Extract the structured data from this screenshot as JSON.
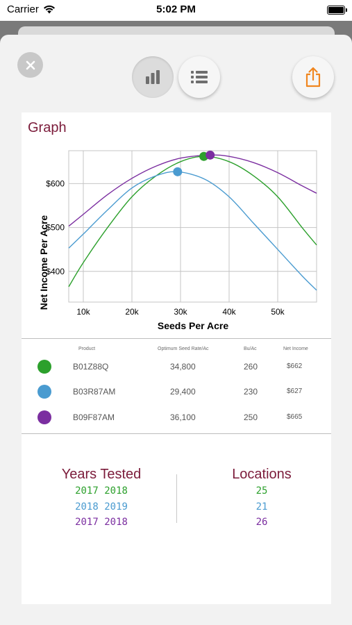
{
  "status_bar": {
    "carrier": "Carrier",
    "time": "5:02 PM"
  },
  "toolbar": {
    "close_icon": "close-icon",
    "graph_view_icon": "bar-chart-icon",
    "list_view_icon": "list-icon",
    "share_icon": "share-icon"
  },
  "card": {
    "title": "Graph"
  },
  "colors": {
    "green": "#2ca02c",
    "blue": "#4a9bd0",
    "purple": "#7b2ea0",
    "title": "#7b1b3a"
  },
  "chart_data": {
    "type": "line",
    "xlabel": "Seeds Per Acre",
    "ylabel": "Net Income Per Acre",
    "xlim": [
      7000,
      58000
    ],
    "ylim": [
      330,
      675
    ],
    "x_ticks": [
      10000,
      20000,
      30000,
      40000,
      50000
    ],
    "x_tick_labels": [
      "10k",
      "20k",
      "30k",
      "40k",
      "50k"
    ],
    "y_ticks": [
      400,
      500,
      600
    ],
    "y_tick_labels": [
      "$400",
      "$500",
      "$600"
    ],
    "grid": true,
    "series": [
      {
        "color": "#2ca02c",
        "opt_x": 34800,
        "opt_y": 662,
        "points": [
          [
            7000,
            365
          ],
          [
            10000,
            420
          ],
          [
            15000,
            500
          ],
          [
            20000,
            570
          ],
          [
            25000,
            618
          ],
          [
            30000,
            650
          ],
          [
            34800,
            662
          ],
          [
            40000,
            650
          ],
          [
            45000,
            618
          ],
          [
            50000,
            570
          ],
          [
            55000,
            500
          ],
          [
            58000,
            460
          ]
        ]
      },
      {
        "color": "#4a9bd0",
        "opt_x": 29400,
        "opt_y": 627,
        "points": [
          [
            7000,
            453
          ],
          [
            10000,
            485
          ],
          [
            15000,
            540
          ],
          [
            20000,
            590
          ],
          [
            25000,
            618
          ],
          [
            29400,
            627
          ],
          [
            35000,
            610
          ],
          [
            40000,
            570
          ],
          [
            45000,
            510
          ],
          [
            50000,
            450
          ],
          [
            55000,
            390
          ],
          [
            58000,
            357
          ]
        ]
      },
      {
        "color": "#7b2ea0",
        "opt_x": 36100,
        "opt_y": 665,
        "points": [
          [
            7000,
            503
          ],
          [
            10000,
            530
          ],
          [
            15000,
            575
          ],
          [
            20000,
            612
          ],
          [
            25000,
            640
          ],
          [
            30000,
            658
          ],
          [
            36100,
            665
          ],
          [
            40000,
            662
          ],
          [
            45000,
            648
          ],
          [
            50000,
            625
          ],
          [
            55000,
            595
          ],
          [
            58000,
            578
          ]
        ]
      }
    ]
  },
  "table": {
    "headers": {
      "product": "Product",
      "seed_rate": "Optimum Seed Rate/Ac",
      "bu": "Bu/Ac",
      "income": "Net Income"
    },
    "rows": [
      {
        "product": "B01Z88Q",
        "seed_rate": "34,800",
        "bu": "260",
        "income": "$662",
        "color": "#2ca02c"
      },
      {
        "product": "B03R87AM",
        "seed_rate": "29,400",
        "bu": "230",
        "income": "$627",
        "color": "#4a9bd0"
      },
      {
        "product": "B09F87AM",
        "seed_rate": "36,100",
        "bu": "250",
        "income": "$665",
        "color": "#7b2ea0"
      }
    ]
  },
  "summary": {
    "years_title": "Years Tested",
    "locations_title": "Locations",
    "years": [
      "2017 2018",
      "2018 2019",
      "2017 2018"
    ],
    "locations": [
      "25",
      "21",
      "26"
    ]
  }
}
